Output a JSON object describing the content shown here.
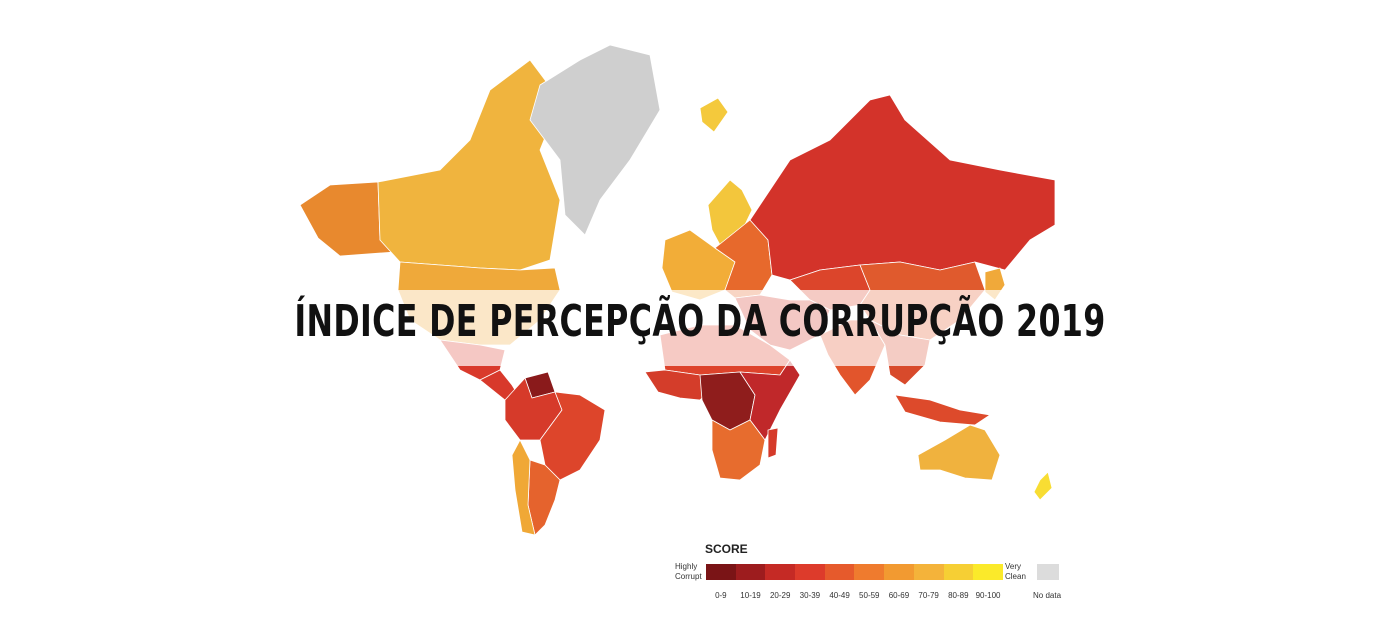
{
  "title": "ÍNDICE DE PERCEPÇÃO DA CORRUPÇÃO 2019",
  "legend": {
    "heading": "SCORE",
    "low_label": "Highly Corrupt",
    "high_label": "Very Clean",
    "no_data_label": "No data",
    "no_data_color": "#dcdcdc",
    "bins": [
      {
        "label": "0-9",
        "color": "#7a1416"
      },
      {
        "label": "10-19",
        "color": "#9d1c1e"
      },
      {
        "label": "20-29",
        "color": "#c52a25"
      },
      {
        "label": "30-39",
        "color": "#dd3b2b"
      },
      {
        "label": "40-49",
        "color": "#e65a2c"
      },
      {
        "label": "50-59",
        "color": "#ef7b2e"
      },
      {
        "label": "60-69",
        "color": "#f29a31"
      },
      {
        "label": "70-79",
        "color": "#f4b33a"
      },
      {
        "label": "80-89",
        "color": "#f6cf34"
      },
      {
        "label": "90-100",
        "color": "#fbea2a"
      }
    ]
  },
  "regions": [
    {
      "name": "alaska",
      "color": "#e8892e"
    },
    {
      "name": "canada",
      "color": "#f0b43e"
    },
    {
      "name": "greenland",
      "color": "#cfcfcf"
    },
    {
      "name": "usa",
      "color": "#efa93a"
    },
    {
      "name": "mexico",
      "color": "#d93a2c"
    },
    {
      "name": "central-america",
      "color": "#d8392b"
    },
    {
      "name": "venezuela",
      "color": "#8a1a1b"
    },
    {
      "name": "south-america-north",
      "color": "#d63a2a"
    },
    {
      "name": "brazil",
      "color": "#dd452b"
    },
    {
      "name": "argentina",
      "color": "#e5632d"
    },
    {
      "name": "chile",
      "color": "#f0a836"
    },
    {
      "name": "iceland",
      "color": "#f4c93c"
    },
    {
      "name": "nordics",
      "color": "#f3c63c"
    },
    {
      "name": "western-europe",
      "color": "#f2ad38"
    },
    {
      "name": "eastern-europe",
      "color": "#e7692c"
    },
    {
      "name": "russia",
      "color": "#d3332a"
    },
    {
      "name": "central-asia",
      "color": "#dc452b"
    },
    {
      "name": "china",
      "color": "#e05a2d"
    },
    {
      "name": "middle-east",
      "color": "#d5392b"
    },
    {
      "name": "north-africa",
      "color": "#dd432b"
    },
    {
      "name": "west-africa",
      "color": "#d43d2a"
    },
    {
      "name": "central-africa",
      "color": "#8f1d1c"
    },
    {
      "name": "east-africa",
      "color": "#c0282a"
    },
    {
      "name": "southern-africa",
      "color": "#e76c2e"
    },
    {
      "name": "madagascar",
      "color": "#d53a2a"
    },
    {
      "name": "india",
      "color": "#e2552c"
    },
    {
      "name": "southeast-asia",
      "color": "#d84a2b"
    },
    {
      "name": "indonesia",
      "color": "#dd4a2b"
    },
    {
      "name": "japan",
      "color": "#f0a93a"
    },
    {
      "name": "australia",
      "color": "#f0b23e"
    },
    {
      "name": "new-zealand",
      "color": "#f8dd33"
    }
  ]
}
